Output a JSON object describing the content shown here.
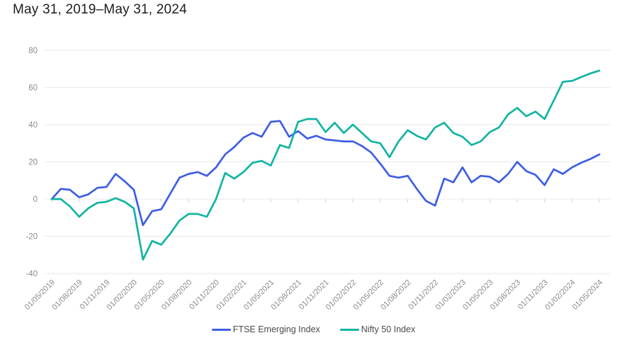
{
  "page": {
    "title": "May 31, 2019–May 31, 2024"
  },
  "colors": {
    "background": "#ffffff",
    "gridline": "#e8e8e8",
    "tick": "#cfcfcf",
    "axis_label": "#8b8b8b",
    "title_text": "#1d1d1d",
    "legend_text": "#4a4a4a"
  },
  "chart_data": {
    "type": "line",
    "title": "May 31, 2019–May 31, 2024",
    "x_unit": "monthly points, tick label every 3rd point",
    "x_ticks_every_n_points": 3,
    "x_tick_labels": [
      "01/05/2019",
      "01/08/2019",
      "01/11/2019",
      "01/02/2020",
      "01/05/2020",
      "01/08/2020",
      "01/11/2020",
      "01/02/2021",
      "01/05/2021",
      "01/08/2021",
      "01/11/2021",
      "01/02/2022",
      "01/05/2022",
      "01/08/2022",
      "01/11/2022",
      "01/02/2023",
      "01/05/2023",
      "01/08/2023",
      "01/11/2023",
      "01/02/2024",
      "01/05/2024"
    ],
    "ylabel": "",
    "xlabel": "",
    "ylim": [
      -40,
      80
    ],
    "y_ticks": [
      80,
      60,
      40,
      20,
      0,
      -20,
      -40
    ],
    "grid": "horizontal",
    "legend_position": "bottom",
    "series": [
      {
        "name": "FTSE Emerging Index",
        "color": "#3f5ee1",
        "values": [
          0,
          5.5,
          5,
          1,
          2.5,
          6,
          6.5,
          13.5,
          9.5,
          5,
          -14,
          -6.5,
          -5.5,
          3,
          11.5,
          13.5,
          14.5,
          12.5,
          17,
          24,
          28,
          33,
          35.5,
          33.5,
          41.5,
          42,
          33.5,
          36.5,
          32.5,
          34,
          32,
          31.5,
          31,
          31,
          28.5,
          25,
          19,
          12.5,
          11.5,
          12.5,
          5.5,
          -1,
          -3.5,
          11,
          9,
          17,
          9,
          12.5,
          12,
          9,
          13.5,
          20,
          15,
          13,
          7.5,
          16,
          13.5,
          17,
          19.5,
          21.5,
          24
        ]
      },
      {
        "name": "Nifty 50 Index",
        "color": "#12b4a2",
        "values": [
          0,
          0,
          -4,
          -9.5,
          -5,
          -2,
          -1.5,
          0.5,
          -1.5,
          -5,
          -32.5,
          -22.5,
          -24.5,
          -18.5,
          -11.5,
          -8,
          -8,
          -9.5,
          0,
          14,
          11,
          14.5,
          19.5,
          20.5,
          18,
          29,
          27.5,
          41.5,
          43,
          43,
          36,
          41,
          35.5,
          40,
          35.5,
          31,
          30,
          22.5,
          31,
          37,
          34,
          32,
          38.5,
          41,
          35.5,
          33.5,
          29,
          31,
          36,
          38.5,
          45.5,
          49,
          44.5,
          47,
          43,
          53,
          63,
          63.5,
          65.5,
          67.5,
          69
        ]
      }
    ]
  }
}
